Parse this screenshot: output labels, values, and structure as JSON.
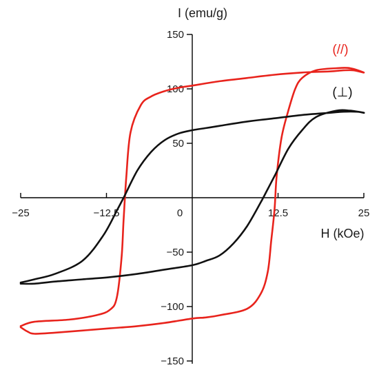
{
  "chart_data": {
    "type": "line",
    "xlabel": "H (kOe)",
    "ylabel": "I (emu/g)",
    "xlim": [
      -25,
      25
    ],
    "ylim": [
      -150,
      150
    ],
    "x_ticks": [
      -25,
      -12.5,
      0,
      12.5,
      25
    ],
    "x_tick_labels": [
      "−25",
      "−12.5",
      "0",
      "12.5",
      "25"
    ],
    "y_ticks": [
      -150,
      -100,
      -50,
      50,
      100,
      150
    ],
    "y_tick_labels": [
      "−150",
      "−100",
      "−50",
      "50",
      "100",
      "150"
    ],
    "grid": false,
    "series": [
      {
        "name": "(//)",
        "color": "#e8231c",
        "x": [
          -25,
          -23,
          -18,
          -14,
          -12,
          -11,
          -10.3,
          -10,
          -9.6,
          -9,
          -7.5,
          -6,
          -4,
          -2,
          0,
          4,
          8,
          12,
          16,
          20,
          22,
          23.5,
          25,
          23,
          21,
          18,
          16,
          15,
          14,
          13,
          12.3,
          12,
          11.5,
          11,
          10,
          8,
          4,
          2,
          0,
          -4,
          -8,
          -12,
          -16,
          -20,
          -23,
          -24,
          -25
        ],
        "y": [
          -118,
          -114,
          -112,
          -108,
          -103,
          -92,
          -55,
          -20,
          20,
          60,
          85,
          93,
          98,
          101,
          103,
          107,
          110,
          113,
          115,
          116,
          117,
          117,
          115,
          119,
          119,
          117,
          110,
          100,
          80,
          55,
          20,
          -10,
          -40,
          -68,
          -88,
          -102,
          -108,
          -110,
          -111,
          -115,
          -118,
          -120,
          -122,
          -124,
          -125,
          -123,
          -119
        ]
      },
      {
        "name": "(⊥)",
        "color": "#111111",
        "x": [
          -25,
          -23,
          -20,
          -16,
          -13,
          -11,
          -10,
          -8,
          -6,
          -4,
          -2,
          0,
          2,
          4,
          8,
          12,
          16,
          20,
          22,
          24,
          25,
          23,
          21,
          18,
          16,
          14,
          12,
          11,
          10,
          8,
          6,
          4,
          2,
          0,
          -4,
          -8,
          -12,
          -16,
          -20,
          -23,
          -25
        ],
        "y": [
          -78,
          -75,
          -70,
          -58,
          -35,
          -12,
          0,
          25,
          42,
          53,
          59,
          62,
          64,
          66,
          70,
          73,
          76,
          78,
          79,
          79,
          78,
          80,
          80,
          74,
          62,
          45,
          20,
          8,
          -4,
          -26,
          -42,
          -53,
          -58,
          -62,
          -66,
          -70,
          -73,
          -75,
          -77,
          -79,
          -79
        ]
      }
    ]
  }
}
